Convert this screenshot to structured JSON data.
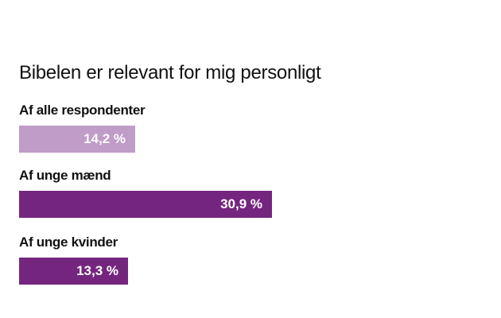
{
  "chart_data": {
    "type": "bar",
    "orientation": "horizontal",
    "title": "Bibelen er relevant for mig personligt",
    "categories": [
      "Af alle respondenter",
      "Af unge mænd",
      "Af unge kvinder"
    ],
    "values": [
      14.2,
      30.9,
      13.3
    ],
    "value_labels": [
      "14,2 %",
      "30,9 %",
      "13,3 %"
    ],
    "colors": [
      "#c09cc8",
      "#74267f",
      "#74267f"
    ],
    "xlim": [
      0,
      100
    ],
    "grid": false,
    "legend": "none"
  }
}
